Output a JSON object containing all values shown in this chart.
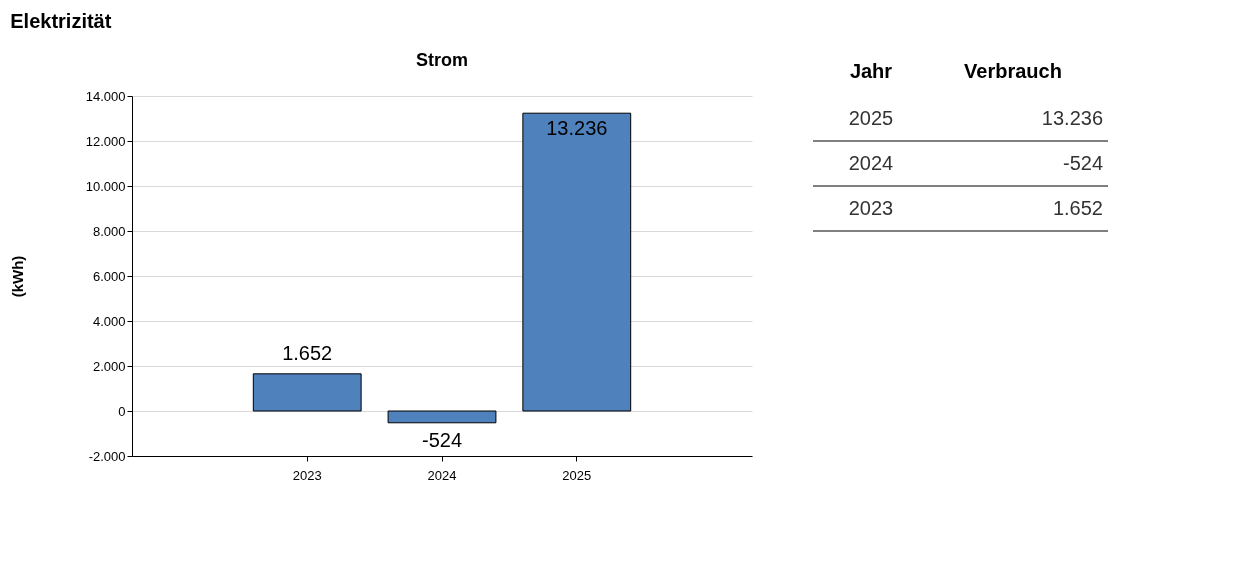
{
  "chart_data": {
    "type": "bar",
    "title": "Elektrizität",
    "subtitle": "Strom",
    "ylabel": "(kWh)",
    "categories": [
      "2023",
      "2024",
      "2025"
    ],
    "values": [
      1652,
      -524,
      13236
    ],
    "color": "#4f81bd",
    "value_labels": [
      "1.652",
      "-524",
      "13.236"
    ],
    "ylim": [
      -2000,
      14000
    ],
    "yticks": [
      {
        "value": -2000,
        "label": "-2.000"
      },
      {
        "value": 0,
        "label": "0"
      },
      {
        "value": 2000,
        "label": "2.000"
      },
      {
        "value": 4000,
        "label": "4.000"
      },
      {
        "value": 6000,
        "label": "6.000"
      },
      {
        "value": 8000,
        "label": "8.000"
      },
      {
        "value": 10000,
        "label": "10.000"
      },
      {
        "value": 12000,
        "label": "12.000"
      },
      {
        "value": 14000,
        "label": "14.000"
      }
    ],
    "grid": "y",
    "annotations": [
      "Jahr",
      "Verbrauch"
    ]
  }
}
